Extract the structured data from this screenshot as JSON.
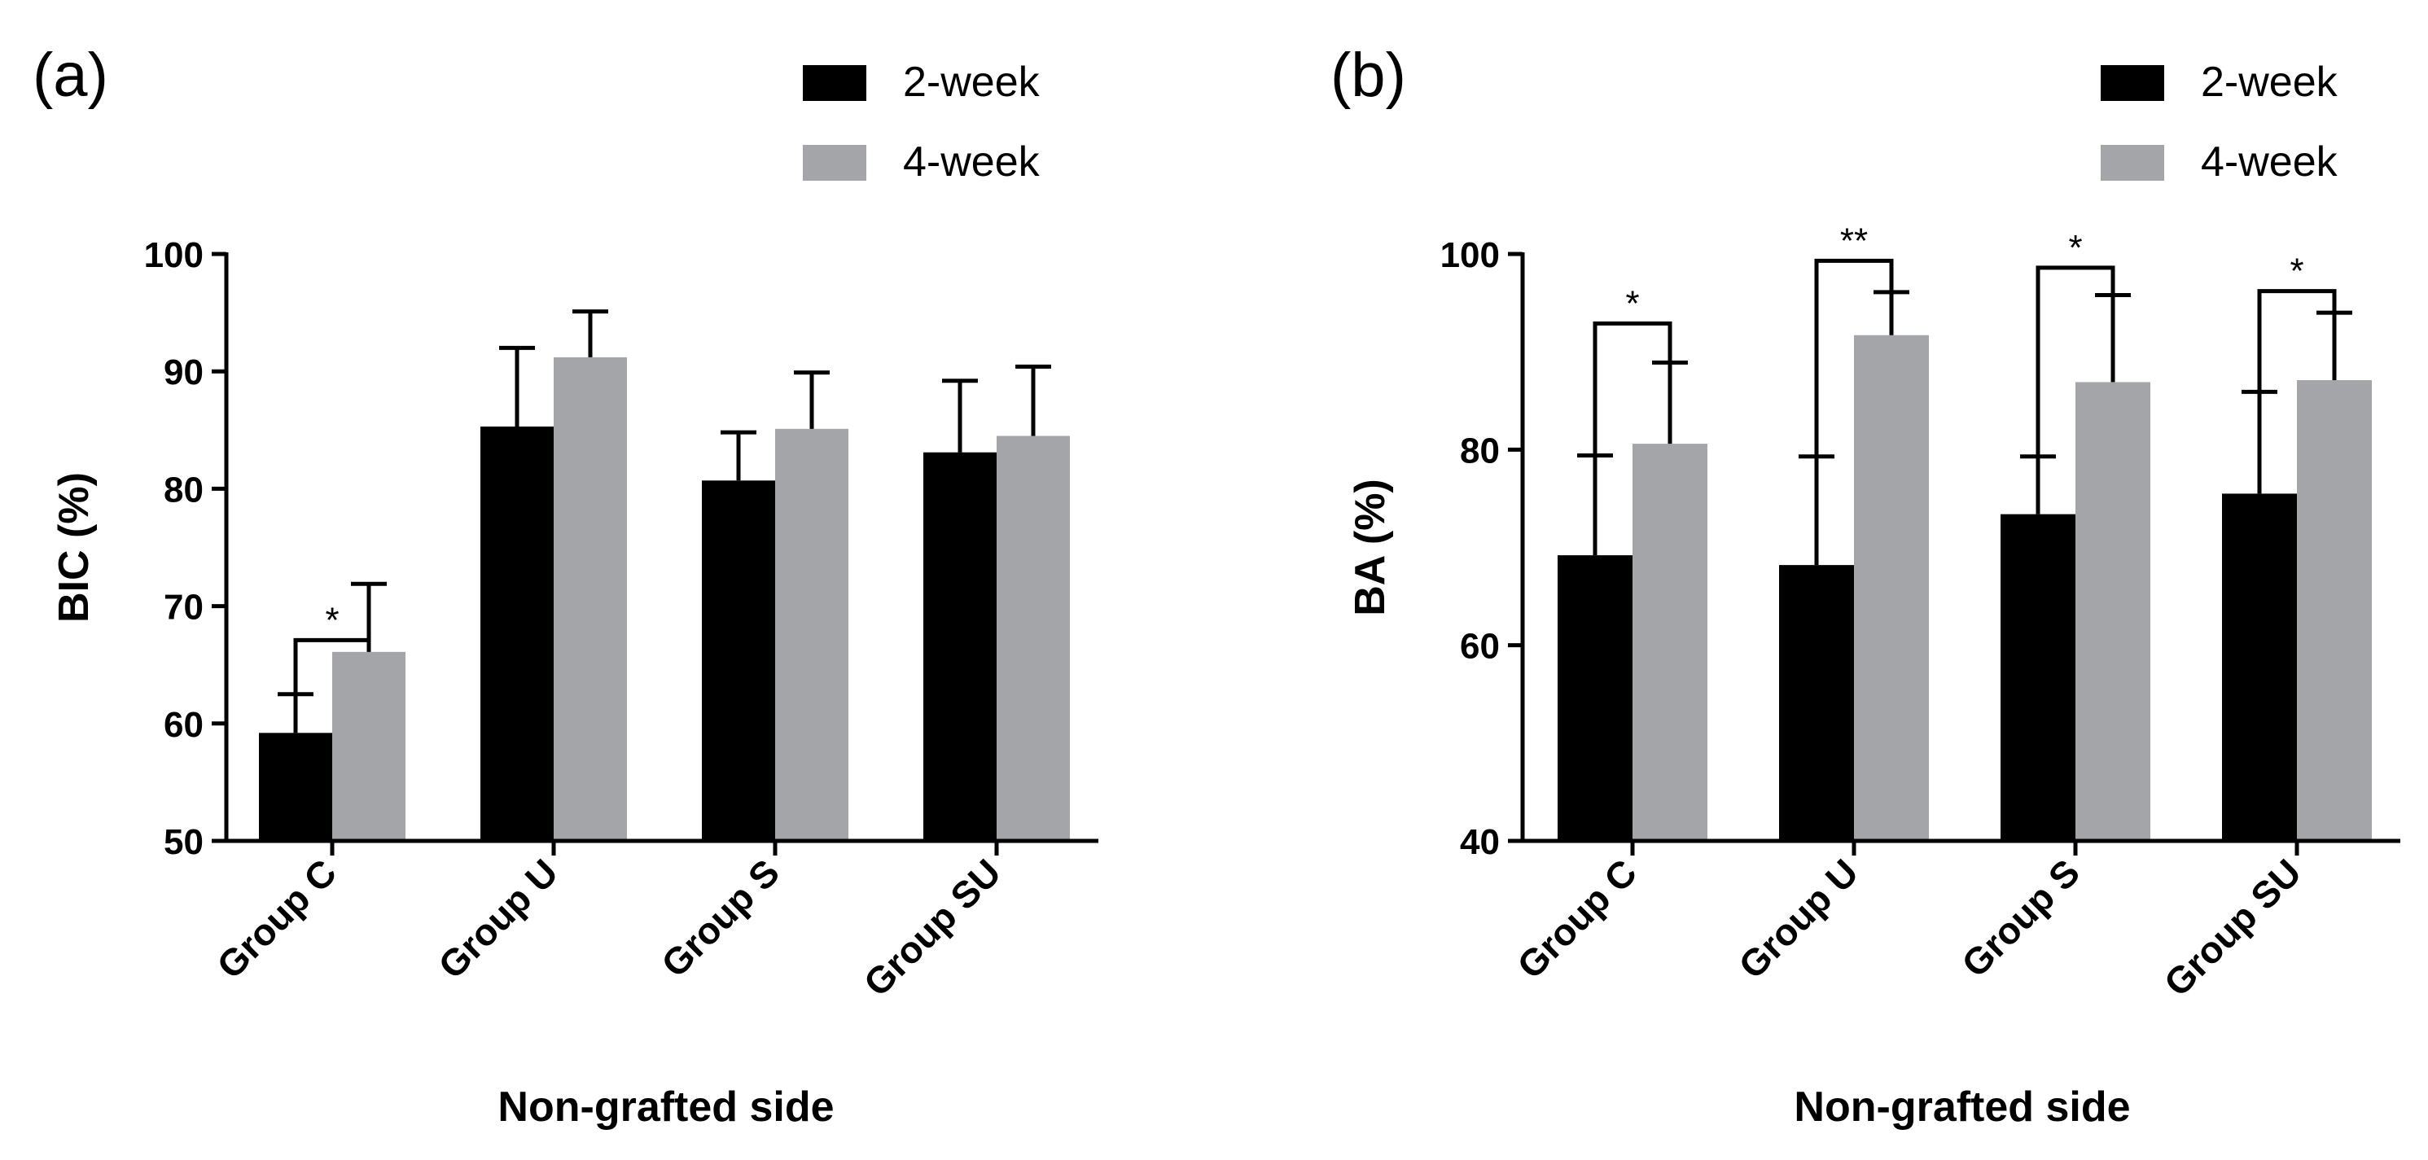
{
  "chart_data": [
    {
      "type": "bar",
      "panel_label": "(a)",
      "categories": [
        "Group C",
        "Group U",
        "Group S",
        "Group SU"
      ],
      "series": [
        {
          "name": "2-week",
          "color": "#000000",
          "values": [
            59.2,
            85.3,
            80.7,
            83.1
          ],
          "errors": [
            3.3,
            6.7,
            4.1,
            6.1
          ]
        },
        {
          "name": "4-week",
          "color": "#a3a5a8",
          "values": [
            66.1,
            91.2,
            85.1,
            84.5
          ],
          "errors": [
            5.8,
            3.9,
            4.8,
            5.9
          ]
        }
      ],
      "ylabel": "BIC (%)",
      "xlabel": "Non-grafted side",
      "ylim": [
        50,
        100
      ],
      "yticks": [
        50,
        60,
        70,
        80,
        90,
        100
      ],
      "significance": [
        {
          "category_index": 0,
          "label": "*",
          "bracket_value": 67.1
        }
      ],
      "legend": [
        "2-week",
        "4-week"
      ],
      "legend_position": "top-right"
    },
    {
      "type": "bar",
      "panel_label": "(b)",
      "categories": [
        "Group C",
        "Group U",
        "Group S",
        "Group SU"
      ],
      "series": [
        {
          "name": "2-week",
          "color": "#000000",
          "values": [
            69.2,
            68.2,
            73.4,
            75.5
          ],
          "errors": [
            10.2,
            11.1,
            5.9,
            10.4
          ]
        },
        {
          "name": "4-week",
          "color": "#a3a5a8",
          "values": [
            80.6,
            91.7,
            86.9,
            87.1
          ],
          "errors": [
            8.3,
            4.4,
            8.9,
            6.9
          ]
        }
      ],
      "ylabel": "BA (%)",
      "xlabel": "Non-grafted side",
      "ylim": [
        40,
        100
      ],
      "yticks": [
        40,
        60,
        80,
        100
      ],
      "significance": [
        {
          "category_index": 0,
          "label": "*",
          "bracket_value": 92.9
        },
        {
          "category_index": 1,
          "label": "**",
          "bracket_value": 99.3
        },
        {
          "category_index": 2,
          "label": "*",
          "bracket_value": 98.6
        },
        {
          "category_index": 3,
          "label": "*",
          "bracket_value": 96.2
        }
      ],
      "legend": [
        "2-week",
        "4-week"
      ],
      "legend_position": "top-right"
    }
  ]
}
